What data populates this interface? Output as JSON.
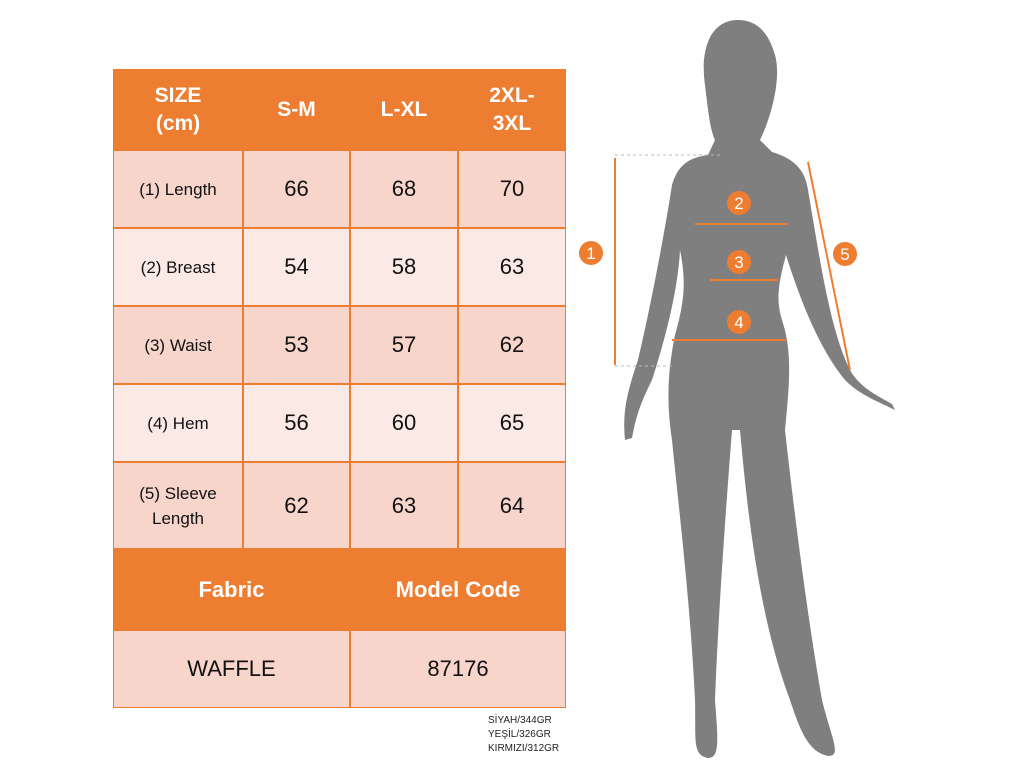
{
  "table": {
    "headers": [
      "SIZE (cm)",
      "S-M",
      "L-XL",
      "2XL-3XL"
    ],
    "rows": [
      {
        "label": "(1) Length",
        "values": [
          "66",
          "68",
          "70"
        ]
      },
      {
        "label": "(2) Breast",
        "values": [
          "54",
          "58",
          "63"
        ]
      },
      {
        "label": "(3) Waist",
        "values": [
          "53",
          "57",
          "62"
        ]
      },
      {
        "label": "(4) Hem",
        "values": [
          "56",
          "60",
          "65"
        ]
      },
      {
        "label": "(5) Sleeve Length",
        "values": [
          "62",
          "63",
          "64"
        ]
      }
    ],
    "fabric_label": "Fabric",
    "model_code_label": "Model Code",
    "fabric": "WAFFLE",
    "model_code": "87176"
  },
  "weights": [
    "SİYAH/344GR",
    "YEŞİL/326GR",
    "KIRMIZI/312GR"
  ],
  "markers": [
    "1",
    "2",
    "3",
    "4",
    "5"
  ],
  "colors": {
    "accent": "#ed7d31",
    "row_dark": "#f8d5cb",
    "row_light": "#fbe9e5",
    "silhouette": "#7f7f7f"
  }
}
